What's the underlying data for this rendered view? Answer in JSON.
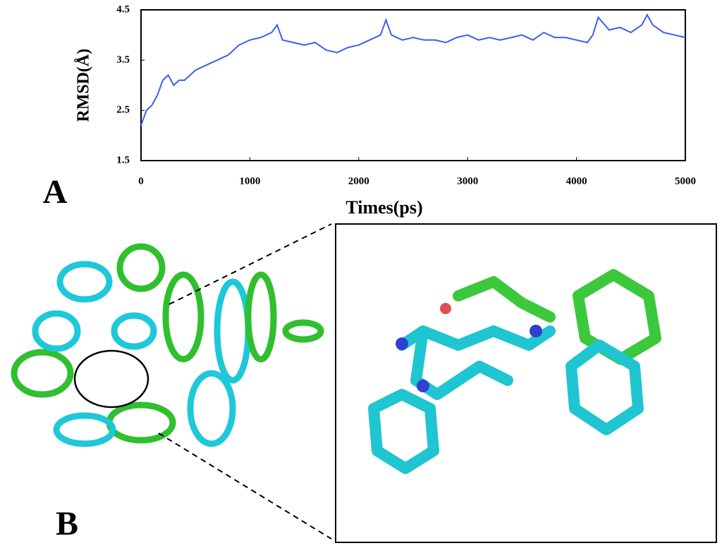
{
  "chart_data": {
    "type": "line",
    "x_label": "Times(ps)",
    "y_label": "RMSD(Å)",
    "x": [
      0,
      50,
      100,
      150,
      200,
      250,
      300,
      350,
      400,
      500,
      600,
      700,
      800,
      900,
      1000,
      1100,
      1200,
      1250,
      1300,
      1400,
      1500,
      1600,
      1700,
      1800,
      1900,
      2000,
      2100,
      2200,
      2250,
      2300,
      2400,
      2500,
      2600,
      2700,
      2800,
      2900,
      3000,
      3100,
      3200,
      3300,
      3400,
      3500,
      3600,
      3700,
      3800,
      3900,
      4000,
      4100,
      4150,
      4200,
      4300,
      4400,
      4500,
      4600,
      4650,
      4700,
      4800,
      4900,
      5000
    ],
    "series": [
      {
        "color": "#3a5ff0",
        "values": [
          2.2,
          2.5,
          2.6,
          2.8,
          3.1,
          3.2,
          3.0,
          3.1,
          3.1,
          3.3,
          3.4,
          3.5,
          3.6,
          3.8,
          3.9,
          3.95,
          4.05,
          4.2,
          3.9,
          3.85,
          3.8,
          3.85,
          3.7,
          3.65,
          3.75,
          3.8,
          3.9,
          4.0,
          4.3,
          4.0,
          3.9,
          3.95,
          3.9,
          3.9,
          3.85,
          3.95,
          4.0,
          3.9,
          3.95,
          3.9,
          3.95,
          4.0,
          3.9,
          4.05,
          3.95,
          3.95,
          3.9,
          3.85,
          4.0,
          4.35,
          4.1,
          4.15,
          4.05,
          4.2,
          4.4,
          4.2,
          4.05,
          4.0,
          3.95
        ]
      }
    ],
    "xlim": [
      0,
      5000
    ],
    "xticks": [
      0,
      1000,
      2000,
      3000,
      4000,
      5000
    ],
    "ylim": [
      1.5,
      4.5
    ],
    "yticks": [
      1.5,
      2.5,
      3.5,
      4.5
    ]
  },
  "panel_labels": [
    "A",
    "B"
  ]
}
